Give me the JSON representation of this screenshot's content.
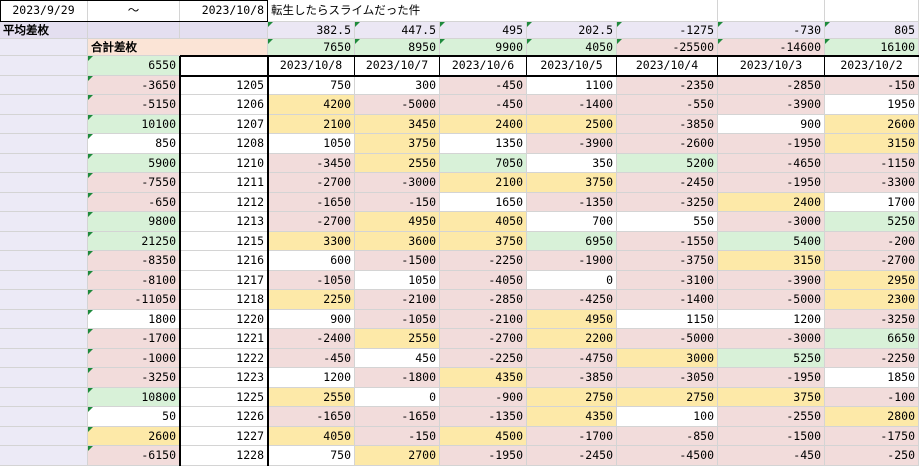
{
  "sheet": {
    "start_date": "2023/9/29",
    "tilde": "～",
    "end_date": "2023/10/8",
    "title": "転生したらスライムだった件",
    "avg_label": "平均差枚",
    "total_label": "合計差枚",
    "grand_total": "6550",
    "dates": [
      "2023/10/8",
      "2023/10/7",
      "2023/10/6",
      "2023/10/5",
      "2023/10/4",
      "2023/10/3",
      "2023/10/2"
    ],
    "averages": [
      "382.5",
      "447.5",
      "495",
      "202.5",
      "-1275",
      "-730",
      "805"
    ],
    "totals": [
      "7650",
      "8950",
      "9900",
      "4050",
      "-25500",
      "-14600",
      "16100"
    ],
    "rows": [
      {
        "total": "-3650",
        "id": "1205",
        "v": [
          "750",
          "300",
          "-450",
          "1100",
          "-2350",
          "-2850",
          "-150"
        ]
      },
      {
        "total": "-5150",
        "id": "1206",
        "v": [
          "4200",
          "-5000",
          "-450",
          "-1400",
          "-550",
          "-3900",
          "1950"
        ]
      },
      {
        "total": "10100",
        "id": "1207",
        "v": [
          "2100",
          "3450",
          "2400",
          "2500",
          "-3850",
          "900",
          "2600"
        ]
      },
      {
        "total": "850",
        "id": "1208",
        "v": [
          "1050",
          "3750",
          "1350",
          "-3900",
          "-2600",
          "-1950",
          "3150"
        ]
      },
      {
        "total": "5900",
        "id": "1210",
        "v": [
          "-3450",
          "2550",
          "7050",
          "350",
          "5200",
          "-4650",
          "-1150"
        ]
      },
      {
        "total": "-7550",
        "id": "1211",
        "v": [
          "-2700",
          "-3000",
          "2100",
          "3750",
          "-2450",
          "-1950",
          "-3300"
        ]
      },
      {
        "total": "-650",
        "id": "1212",
        "v": [
          "-1650",
          "-150",
          "1650",
          "-1350",
          "-3250",
          "2400",
          "1700"
        ]
      },
      {
        "total": "9800",
        "id": "1213",
        "v": [
          "-2700",
          "4950",
          "4050",
          "700",
          "550",
          "-3000",
          "5250"
        ]
      },
      {
        "total": "21250",
        "id": "1215",
        "v": [
          "3300",
          "3600",
          "3750",
          "6950",
          "-1550",
          "5400",
          "-200"
        ]
      },
      {
        "total": "-8350",
        "id": "1216",
        "v": [
          "600",
          "-1500",
          "-2250",
          "-1900",
          "-3750",
          "3150",
          "-2700"
        ]
      },
      {
        "total": "-8100",
        "id": "1217",
        "v": [
          "-1050",
          "1050",
          "-4050",
          "0",
          "-3100",
          "-3900",
          "2950"
        ]
      },
      {
        "total": "-11050",
        "id": "1218",
        "v": [
          "2250",
          "-2100",
          "-2850",
          "-4250",
          "-1400",
          "-5000",
          "2300"
        ]
      },
      {
        "total": "1800",
        "id": "1220",
        "v": [
          "900",
          "-1050",
          "-2100",
          "4950",
          "1150",
          "1200",
          "-3250"
        ]
      },
      {
        "total": "-1700",
        "id": "1221",
        "v": [
          "-2400",
          "2550",
          "-2700",
          "2200",
          "-5000",
          "-3000",
          "6650"
        ]
      },
      {
        "total": "-1000",
        "id": "1222",
        "v": [
          "-450",
          "450",
          "-2250",
          "-4750",
          "3000",
          "5250",
          "-2250"
        ]
      },
      {
        "total": "-3250",
        "id": "1223",
        "v": [
          "1200",
          "-1800",
          "4350",
          "-3850",
          "-3050",
          "-1950",
          "1850"
        ]
      },
      {
        "total": "10800",
        "id": "1225",
        "v": [
          "2550",
          "0",
          "-900",
          "2750",
          "2750",
          "3750",
          "-100"
        ]
      },
      {
        "total": "50",
        "id": "1226",
        "v": [
          "-1650",
          "-1650",
          "-1350",
          "4350",
          "100",
          "-2550",
          "2800"
        ]
      },
      {
        "total": "2600",
        "id": "1227",
        "v": [
          "4050",
          "-150",
          "4500",
          "-1700",
          "-850",
          "-1500",
          "-1750"
        ]
      },
      {
        "total": "-6150",
        "id": "1228",
        "v": [
          "750",
          "2700",
          "-1950",
          "-2450",
          "-4500",
          "-450",
          "-250"
        ]
      }
    ]
  },
  "colors": {
    "neg": "#f2dcdb",
    "pos": "#d8f1d8",
    "mid": "#fde9a8",
    "white": "#ffffff",
    "avg_row": "#e4dff0",
    "avg_val": "#ebe7f4",
    "total_label_bg": "#fbe4d6",
    "totals_pos": "#d8f1d8",
    "totals_neg": "#f2dcdb",
    "left_band": "#eceaf6"
  }
}
